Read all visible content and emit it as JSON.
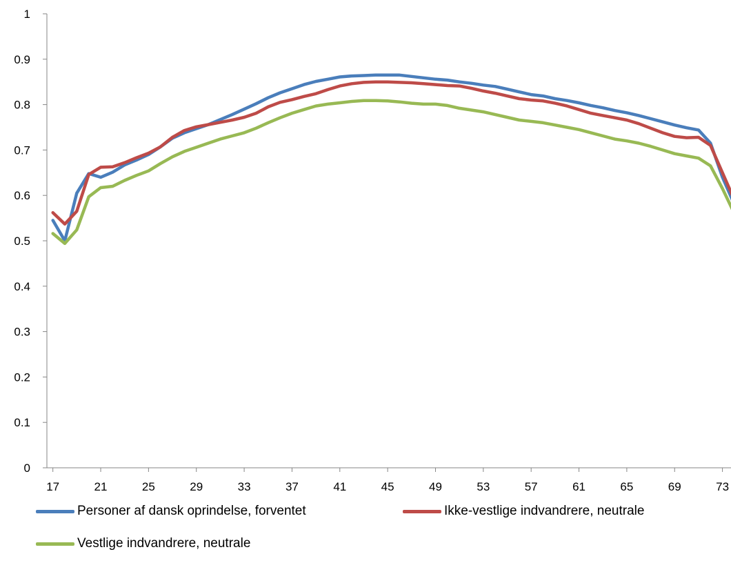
{
  "chart_data": {
    "type": "line",
    "title": "",
    "xlabel": "",
    "ylabel": "",
    "x": [
      17,
      18,
      19,
      20,
      21,
      22,
      23,
      24,
      25,
      26,
      27,
      28,
      29,
      30,
      31,
      32,
      33,
      34,
      35,
      36,
      37,
      38,
      39,
      40,
      41,
      42,
      43,
      44,
      45,
      46,
      47,
      48,
      49,
      50,
      51,
      52,
      53,
      54,
      55,
      56,
      57,
      58,
      59,
      60,
      61,
      62,
      63,
      64,
      65,
      66,
      67,
      68,
      69,
      70,
      71,
      72,
      73,
      74
    ],
    "x_ticks": [
      17,
      21,
      25,
      29,
      33,
      37,
      41,
      45,
      49,
      53,
      57,
      61,
      65,
      69,
      73
    ],
    "xlim": [
      16.5,
      73.6
    ],
    "ylim": [
      0,
      1
    ],
    "y_ticks": [
      0,
      0.1,
      0.2,
      0.3,
      0.4,
      0.5,
      0.6,
      0.7,
      0.8,
      0.9,
      1
    ],
    "y_tick_labels": [
      "0",
      "0.1",
      "0.2",
      "0.3",
      "0.4",
      "0.5",
      "0.6",
      "0.7",
      "0.8",
      "0.9",
      "1"
    ],
    "grid": false,
    "legend_position": "bottom",
    "series": [
      {
        "name": "Personer af dansk oprindelse, forventet",
        "color": "#4a7ebb",
        "values": [
          0.545,
          0.5,
          0.605,
          0.648,
          0.64,
          0.651,
          0.667,
          0.678,
          0.69,
          0.707,
          0.726,
          0.738,
          0.747,
          0.756,
          0.767,
          0.778,
          0.79,
          0.802,
          0.815,
          0.826,
          0.835,
          0.844,
          0.851,
          0.856,
          0.861,
          0.863,
          0.864,
          0.865,
          0.865,
          0.865,
          0.862,
          0.859,
          0.856,
          0.854,
          0.85,
          0.847,
          0.843,
          0.84,
          0.834,
          0.828,
          0.822,
          0.819,
          0.813,
          0.809,
          0.804,
          0.798,
          0.793,
          0.787,
          0.782,
          0.776,
          0.769,
          0.762,
          0.755,
          0.749,
          0.744,
          0.715,
          0.64,
          0.58
        ]
      },
      {
        "name": "Ikke-vestlige indvandrere, neutrale",
        "color": "#be4b48",
        "values": [
          0.562,
          0.537,
          0.565,
          0.646,
          0.662,
          0.663,
          0.672,
          0.683,
          0.693,
          0.707,
          0.728,
          0.743,
          0.751,
          0.756,
          0.761,
          0.766,
          0.772,
          0.781,
          0.795,
          0.805,
          0.811,
          0.818,
          0.824,
          0.833,
          0.841,
          0.846,
          0.849,
          0.85,
          0.85,
          0.849,
          0.848,
          0.846,
          0.844,
          0.842,
          0.841,
          0.836,
          0.83,
          0.825,
          0.819,
          0.813,
          0.81,
          0.808,
          0.803,
          0.797,
          0.789,
          0.781,
          0.776,
          0.771,
          0.766,
          0.758,
          0.748,
          0.738,
          0.73,
          0.727,
          0.728,
          0.71,
          0.65,
          0.59
        ]
      },
      {
        "name": "Vestlige indvandrere, neutrale",
        "color": "#98b954",
        "values": [
          0.516,
          0.494,
          0.524,
          0.597,
          0.617,
          0.62,
          0.633,
          0.644,
          0.654,
          0.67,
          0.685,
          0.697,
          0.706,
          0.715,
          0.724,
          0.731,
          0.738,
          0.748,
          0.76,
          0.771,
          0.781,
          0.789,
          0.797,
          0.801,
          0.804,
          0.807,
          0.809,
          0.809,
          0.808,
          0.806,
          0.803,
          0.801,
          0.801,
          0.798,
          0.792,
          0.788,
          0.784,
          0.778,
          0.772,
          0.766,
          0.763,
          0.76,
          0.755,
          0.75,
          0.745,
          0.738,
          0.731,
          0.724,
          0.72,
          0.715,
          0.708,
          0.7,
          0.692,
          0.687,
          0.682,
          0.665,
          0.615,
          0.56
        ]
      }
    ]
  }
}
